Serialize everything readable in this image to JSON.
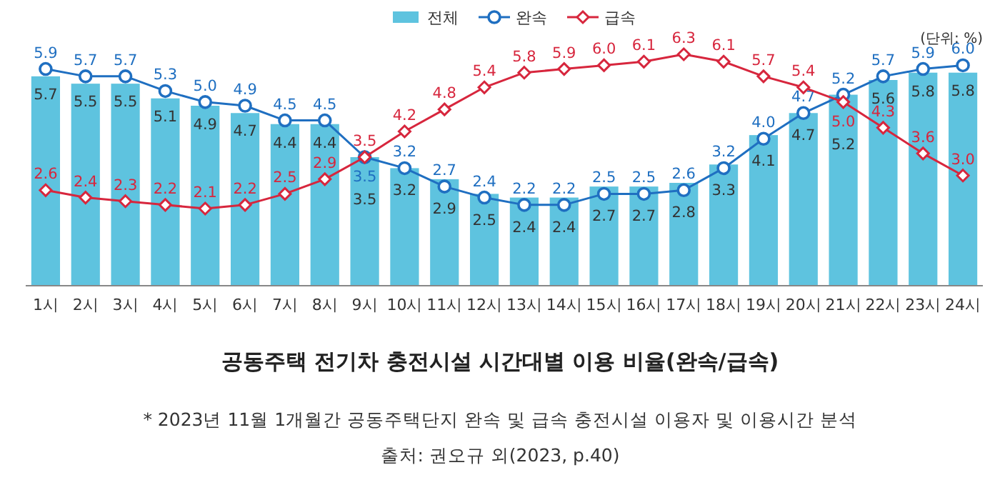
{
  "chart_data": {
    "type": "bar",
    "title": "공동주택 전기차 충전시설 시간대별 이용 비율(완속/급속)",
    "categories": [
      "1시",
      "2시",
      "3시",
      "4시",
      "5시",
      "6시",
      "7시",
      "8시",
      "9시",
      "10시",
      "11시",
      "12시",
      "13시",
      "14시",
      "15시",
      "16시",
      "17시",
      "18시",
      "19시",
      "20시",
      "21시",
      "22시",
      "23시",
      "24시"
    ],
    "series": [
      {
        "name": "전체",
        "color": "#5ec3df",
        "values": [
          5.7,
          5.5,
          5.5,
          5.1,
          4.9,
          4.7,
          4.4,
          4.4,
          3.5,
          3.2,
          2.9,
          2.5,
          2.4,
          2.4,
          2.7,
          2.7,
          2.8,
          3.3,
          4.1,
          4.7,
          5.2,
          5.6,
          5.8,
          5.8
        ],
        "value_labels": [
          "5.7",
          "5.5",
          "5.5",
          "5.1",
          "4.9",
          "4.7",
          "4.4",
          "4.4",
          "3.5",
          "3.2",
          "2.9",
          "2.5",
          "2.4",
          "2.4",
          "2.7",
          "2.7",
          "2.8",
          "3.3",
          "4.1",
          "4.7",
          "5.2",
          "5.6",
          "5.8",
          "5.8"
        ]
      },
      {
        "name": "완속",
        "type": "line",
        "marker": "circle",
        "color": "#1f6fc1",
        "values": [
          5.9,
          5.7,
          5.7,
          5.3,
          5.0,
          4.9,
          4.5,
          4.5,
          3.5,
          3.2,
          2.7,
          2.4,
          2.2,
          2.2,
          2.5,
          2.5,
          2.6,
          3.2,
          4.0,
          4.7,
          5.2,
          5.7,
          5.9,
          6.0
        ],
        "value_labels": [
          "5.9",
          "5.7",
          "5.7",
          "5.3",
          "5.0",
          "4.9",
          "4.5",
          "4.5",
          "3.5",
          "3.2",
          "2.7",
          "2.4",
          "2.2",
          "2.2",
          "2.5",
          "2.5",
          "2.6",
          "3.2",
          "4.0",
          "4.7",
          "5.2",
          "5.7",
          "5.9",
          "6.0"
        ]
      },
      {
        "name": "급속",
        "type": "line",
        "marker": "diamond",
        "color": "#d7263d",
        "values": [
          2.6,
          2.4,
          2.3,
          2.2,
          2.1,
          2.2,
          2.5,
          2.9,
          3.5,
          4.2,
          4.8,
          5.4,
          5.8,
          5.9,
          6.0,
          6.1,
          6.3,
          6.1,
          5.7,
          5.4,
          5.0,
          4.3,
          3.6,
          3.0
        ],
        "value_labels": [
          "2.6",
          "2.4",
          "2.3",
          "2.2",
          "2.1",
          "2.2",
          "2.5",
          "2.9",
          "3.5",
          "4.2",
          "4.8",
          "5.4",
          "5.8",
          "5.9",
          "6.0",
          "6.1",
          "6.3",
          "6.1",
          "5.7",
          "5.4",
          "5.0",
          "4.3",
          "3.6",
          "3.0"
        ]
      }
    ],
    "legend": "top",
    "annotations": [
      "(단위: %)",
      "* 2023년 11월 1개월간 공동주택단지 완속 및 급속 충전시설 이용자 및 이용시간 분석",
      "출처: 권오규 외(2023, p.40)"
    ]
  }
}
